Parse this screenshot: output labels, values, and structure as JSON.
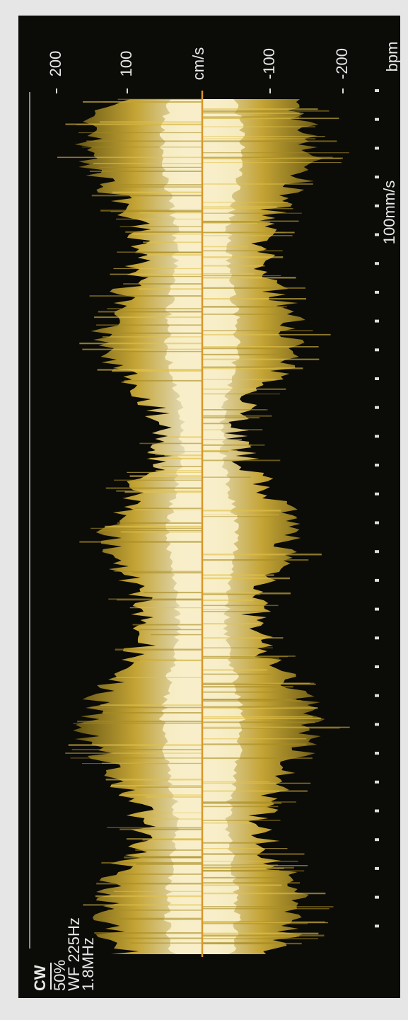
{
  "header": {
    "mode": "CW",
    "gain": "50%",
    "wall_filter": "WF 225Hz",
    "frequency": "1.8MHz"
  },
  "scale": {
    "labels": [
      "200",
      "100",
      "cm/s",
      "-100",
      "-200"
    ]
  },
  "sweep_speed": "100mm/s",
  "heart_rate_unit": "bpm"
}
